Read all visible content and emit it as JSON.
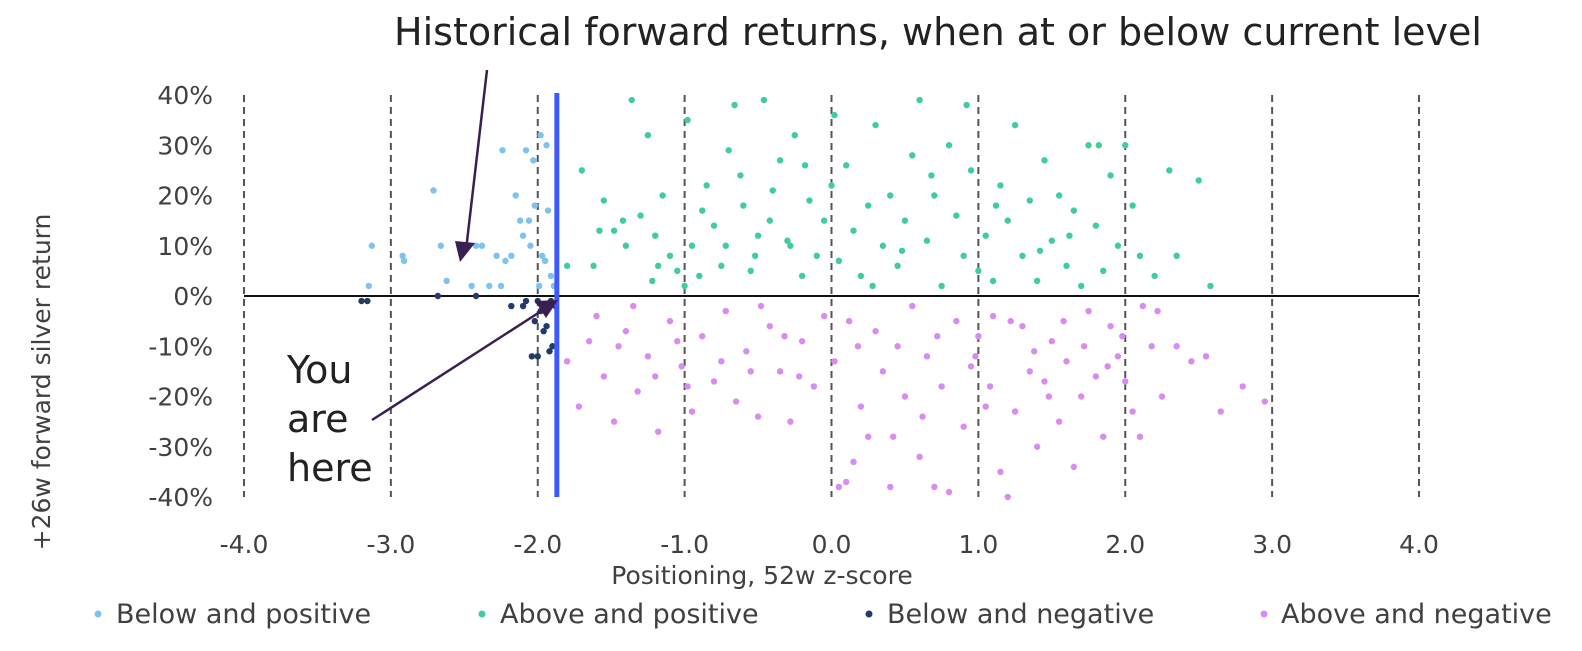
{
  "chart_data": {
    "type": "scatter",
    "xlabel": "Positioning, 52w z-score",
    "ylabel": "+26w forward silver return",
    "xlim": [
      -4.0,
      4.0
    ],
    "ylim": [
      -0.4,
      0.4
    ],
    "x_ticks": [
      "-4.0",
      "-3.0",
      "-2.0",
      "-1.0",
      "0.0",
      "1.0",
      "2.0",
      "3.0",
      "4.0"
    ],
    "y_ticks": [
      "40%",
      "30%",
      "20%",
      "10%",
      "0%",
      "-10%",
      "-20%",
      "-30%",
      "-40%"
    ],
    "grid": "vertical dashed lines at each x tick",
    "legend_position": "bottom",
    "current_level_x": -1.87,
    "annotations": {
      "historical": "Historical forward returns, when at or below current level",
      "you_are_here": [
        "You",
        "are",
        "here"
      ]
    },
    "series": [
      {
        "name": "Below and positive",
        "color": "#7ec3f0",
        "points": [
          [
            -3.13,
            0.1
          ],
          [
            -3.15,
            0.02
          ],
          [
            -2.92,
            0.08
          ],
          [
            -2.91,
            0.07
          ],
          [
            -2.71,
            0.21
          ],
          [
            -2.66,
            0.1
          ],
          [
            -2.62,
            0.03
          ],
          [
            -2.42,
            0.1
          ],
          [
            -2.38,
            0.1
          ],
          [
            -2.33,
            0.02
          ],
          [
            -2.25,
            0.02
          ],
          [
            -2.28,
            0.08
          ],
          [
            -2.22,
            0.07
          ],
          [
            -2.18,
            0.08
          ],
          [
            -2.24,
            0.29
          ],
          [
            -2.15,
            0.2
          ],
          [
            -2.08,
            0.29
          ],
          [
            -2.03,
            0.27
          ],
          [
            -2.12,
            0.15
          ],
          [
            -2.1,
            0.12
          ],
          [
            -2.06,
            0.15
          ],
          [
            -2.02,
            0.18
          ],
          [
            -1.98,
            0.32
          ],
          [
            -1.94,
            0.3
          ],
          [
            -1.93,
            0.17
          ],
          [
            -1.97,
            0.08
          ],
          [
            -1.99,
            0.02
          ],
          [
            -1.91,
            0.04
          ],
          [
            -1.95,
            0.07
          ],
          [
            -1.89,
            0.02
          ],
          [
            -2.45,
            0.02
          ],
          [
            -2.05,
            0.1
          ]
        ]
      },
      {
        "name": "Above and positive",
        "color": "#3fcf96",
        "points": [
          [
            -1.55,
            0.19
          ],
          [
            -1.48,
            0.13
          ],
          [
            -1.42,
            0.15
          ],
          [
            -1.36,
            0.39
          ],
          [
            -1.3,
            0.16
          ],
          [
            -1.25,
            0.32
          ],
          [
            -1.2,
            0.12
          ],
          [
            -1.15,
            0.2
          ],
          [
            -1.1,
            0.08
          ],
          [
            -1.05,
            0.05
          ],
          [
            -1.0,
            0.02
          ],
          [
            -0.95,
            0.1
          ],
          [
            -0.9,
            0.04
          ],
          [
            -0.85,
            0.22
          ],
          [
            -0.8,
            0.14
          ],
          [
            -0.75,
            0.06
          ],
          [
            -0.7,
            0.29
          ],
          [
            -0.66,
            0.38
          ],
          [
            -0.6,
            0.18
          ],
          [
            -0.55,
            0.05
          ],
          [
            -0.5,
            0.12
          ],
          [
            -0.46,
            0.39
          ],
          [
            -0.4,
            0.21
          ],
          [
            -0.35,
            0.27
          ],
          [
            -0.3,
            0.11
          ],
          [
            -0.25,
            0.32
          ],
          [
            -0.2,
            0.04
          ],
          [
            -0.15,
            0.19
          ],
          [
            -0.1,
            0.08
          ],
          [
            -0.05,
            0.15
          ],
          [
            0.0,
            0.22
          ],
          [
            0.05,
            0.07
          ],
          [
            0.1,
            0.26
          ],
          [
            0.15,
            0.13
          ],
          [
            0.2,
            0.04
          ],
          [
            0.25,
            0.18
          ],
          [
            0.3,
            0.34
          ],
          [
            0.35,
            0.1
          ],
          [
            0.4,
            0.2
          ],
          [
            0.45,
            0.06
          ],
          [
            0.5,
            0.15
          ],
          [
            0.55,
            0.28
          ],
          [
            0.6,
            0.39
          ],
          [
            0.65,
            0.11
          ],
          [
            0.7,
            0.2
          ],
          [
            0.75,
            0.02
          ],
          [
            0.8,
            0.3
          ],
          [
            0.85,
            0.16
          ],
          [
            0.9,
            0.08
          ],
          [
            0.95,
            0.25
          ],
          [
            1.0,
            0.05
          ],
          [
            1.05,
            0.12
          ],
          [
            1.1,
            0.03
          ],
          [
            1.15,
            0.22
          ],
          [
            1.2,
            0.15
          ],
          [
            1.25,
            0.34
          ],
          [
            1.3,
            0.08
          ],
          [
            1.35,
            0.19
          ],
          [
            1.4,
            0.03
          ],
          [
            1.45,
            0.27
          ],
          [
            1.5,
            0.11
          ],
          [
            1.55,
            0.2
          ],
          [
            1.6,
            0.06
          ],
          [
            1.65,
            0.17
          ],
          [
            1.7,
            0.02
          ],
          [
            1.75,
            0.3
          ],
          [
            1.8,
            0.14
          ],
          [
            1.85,
            0.05
          ],
          [
            1.9,
            0.24
          ],
          [
            1.95,
            0.1
          ],
          [
            2.0,
            0.3
          ],
          [
            2.1,
            0.08
          ],
          [
            2.2,
            0.04
          ],
          [
            2.3,
            0.25
          ],
          [
            2.35,
            0.08
          ],
          [
            2.5,
            0.23
          ],
          [
            2.58,
            0.02
          ],
          [
            -1.7,
            0.25
          ],
          [
            -1.62,
            0.06
          ],
          [
            -1.4,
            0.1
          ],
          [
            -1.22,
            0.03
          ],
          [
            -0.98,
            0.35
          ],
          [
            -0.72,
            0.1
          ],
          [
            -0.62,
            0.24
          ],
          [
            -0.42,
            0.15
          ],
          [
            -0.18,
            0.26
          ],
          [
            0.02,
            0.36
          ],
          [
            0.28,
            0.02
          ],
          [
            0.48,
            0.09
          ],
          [
            0.68,
            0.24
          ],
          [
            0.92,
            0.38
          ],
          [
            1.12,
            0.18
          ],
          [
            1.42,
            0.09
          ],
          [
            1.62,
            0.12
          ],
          [
            1.82,
            0.3
          ],
          [
            2.05,
            0.18
          ],
          [
            -1.8,
            0.06
          ],
          [
            -1.58,
            0.13
          ],
          [
            -1.18,
            0.06
          ],
          [
            -0.88,
            0.17
          ],
          [
            -0.52,
            0.08
          ],
          [
            -0.28,
            0.1
          ]
        ]
      },
      {
        "name": "Below and negative",
        "color": "#243a66",
        "points": [
          [
            -3.2,
            -0.01
          ],
          [
            -3.16,
            -0.01
          ],
          [
            -2.68,
            0.0
          ],
          [
            -2.42,
            0.0
          ],
          [
            -2.18,
            -0.02
          ],
          [
            -2.08,
            -0.01
          ],
          [
            -2.02,
            -0.05
          ],
          [
            -1.98,
            -0.03
          ],
          [
            -1.96,
            -0.07
          ],
          [
            -1.94,
            -0.06
          ],
          [
            -1.92,
            -0.11
          ],
          [
            -1.9,
            -0.1
          ],
          [
            -2.0,
            -0.12
          ],
          [
            -2.04,
            -0.12
          ],
          [
            -1.88,
            -0.02
          ],
          [
            -1.91,
            -0.01
          ],
          [
            -2.1,
            -0.02
          ],
          [
            -2.0,
            -0.01
          ]
        ]
      },
      {
        "name": "Above and negative",
        "color": "#d88cf2",
        "points": [
          [
            -1.8,
            -0.13
          ],
          [
            -1.72,
            -0.22
          ],
          [
            -1.65,
            -0.09
          ],
          [
            -1.55,
            -0.16
          ],
          [
            -1.48,
            -0.25
          ],
          [
            -1.4,
            -0.07
          ],
          [
            -1.32,
            -0.19
          ],
          [
            -1.25,
            -0.12
          ],
          [
            -1.18,
            -0.27
          ],
          [
            -1.1,
            -0.05
          ],
          [
            -1.02,
            -0.14
          ],
          [
            -0.95,
            -0.23
          ],
          [
            -0.88,
            -0.08
          ],
          [
            -0.8,
            -0.17
          ],
          [
            -0.72,
            -0.03
          ],
          [
            -0.65,
            -0.21
          ],
          [
            -0.58,
            -0.11
          ],
          [
            -0.5,
            -0.24
          ],
          [
            -0.42,
            -0.06
          ],
          [
            -0.35,
            -0.15
          ],
          [
            -0.28,
            -0.25
          ],
          [
            -0.2,
            -0.09
          ],
          [
            -0.12,
            -0.18
          ],
          [
            -0.05,
            -0.04
          ],
          [
            0.02,
            -0.13
          ],
          [
            0.05,
            -0.38
          ],
          [
            0.1,
            -0.37
          ],
          [
            0.15,
            -0.33
          ],
          [
            0.2,
            -0.22
          ],
          [
            0.25,
            -0.28
          ],
          [
            0.3,
            -0.07
          ],
          [
            0.35,
            -0.15
          ],
          [
            0.4,
            -0.38
          ],
          [
            0.45,
            -0.1
          ],
          [
            0.5,
            -0.2
          ],
          [
            0.55,
            -0.02
          ],
          [
            0.6,
            -0.32
          ],
          [
            0.65,
            -0.12
          ],
          [
            0.7,
            -0.38
          ],
          [
            0.75,
            -0.18
          ],
          [
            0.8,
            -0.39
          ],
          [
            0.85,
            -0.05
          ],
          [
            0.9,
            -0.26
          ],
          [
            0.95,
            -0.14
          ],
          [
            1.0,
            -0.08
          ],
          [
            1.05,
            -0.22
          ],
          [
            1.1,
            -0.04
          ],
          [
            1.15,
            -0.35
          ],
          [
            1.2,
            -0.4
          ],
          [
            1.25,
            -0.23
          ],
          [
            1.3,
            -0.06
          ],
          [
            1.35,
            -0.15
          ],
          [
            1.4,
            -0.3
          ],
          [
            1.45,
            -0.17
          ],
          [
            1.5,
            -0.09
          ],
          [
            1.55,
            -0.25
          ],
          [
            1.6,
            -0.13
          ],
          [
            1.65,
            -0.34
          ],
          [
            1.7,
            -0.2
          ],
          [
            1.75,
            -0.03
          ],
          [
            1.8,
            -0.16
          ],
          [
            1.85,
            -0.28
          ],
          [
            1.9,
            -0.06
          ],
          [
            1.95,
            -0.12
          ],
          [
            2.0,
            -0.17
          ],
          [
            2.05,
            -0.23
          ],
          [
            2.1,
            -0.28
          ],
          [
            2.18,
            -0.1
          ],
          [
            2.25,
            -0.2
          ],
          [
            2.35,
            -0.1
          ],
          [
            2.45,
            -0.13
          ],
          [
            2.55,
            -0.12
          ],
          [
            2.65,
            -0.23
          ],
          [
            2.8,
            -0.18
          ],
          [
            2.95,
            -0.21
          ],
          [
            -1.6,
            -0.04
          ],
          [
            -1.35,
            -0.02
          ],
          [
            -1.05,
            -0.09
          ],
          [
            -0.75,
            -0.13
          ],
          [
            -0.48,
            -0.02
          ],
          [
            -0.22,
            -0.16
          ],
          [
            0.12,
            -0.05
          ],
          [
            0.42,
            -0.28
          ],
          [
            0.72,
            -0.08
          ],
          [
            0.98,
            -0.12
          ],
          [
            1.22,
            -0.05
          ],
          [
            1.48,
            -0.2
          ],
          [
            1.72,
            -0.1
          ],
          [
            1.98,
            -0.08
          ],
          [
            2.22,
            -0.03
          ],
          [
            -1.45,
            -0.1
          ],
          [
            -0.98,
            -0.18
          ],
          [
            -0.55,
            -0.15
          ],
          [
            0.18,
            -0.1
          ],
          [
            0.62,
            -0.24
          ],
          [
            1.08,
            -0.18
          ],
          [
            1.38,
            -0.11
          ],
          [
            1.58,
            -0.05
          ],
          [
            1.88,
            -0.14
          ],
          [
            2.12,
            -0.02
          ],
          [
            -1.2,
            -0.16
          ],
          [
            -0.32,
            -0.08
          ]
        ]
      }
    ]
  }
}
